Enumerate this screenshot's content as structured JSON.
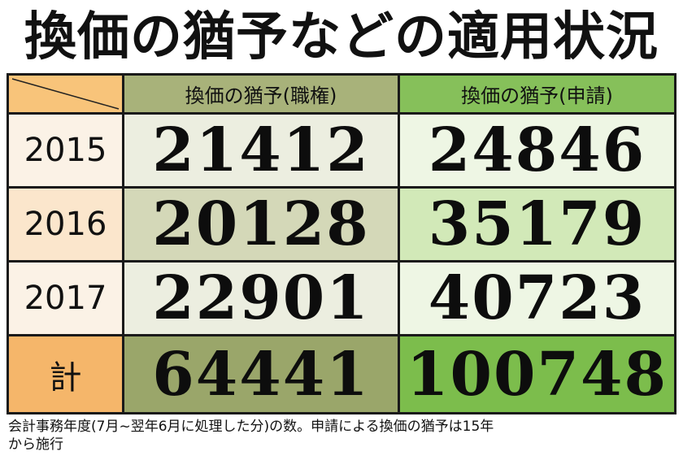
{
  "title": "換価の猶予などの適用状況",
  "table": {
    "columns": [
      "換価の猶予(職権)",
      "換価の猶予(申請)"
    ],
    "rows": [
      {
        "label": "2015",
        "values": [
          "21412",
          "24846"
        ]
      },
      {
        "label": "2016",
        "values": [
          "20128",
          "35179"
        ]
      },
      {
        "label": "2017",
        "values": [
          "22901",
          "40723"
        ]
      }
    ],
    "total": {
      "label": "計",
      "values": [
        "64441",
        "100748"
      ]
    }
  },
  "footnote": {
    "line1": "会計事務年度(7月~翌年6月に処理した分)の数。申請による換価の猶予は15年",
    "line2": "から施行"
  },
  "colors": {
    "corner": "#f8c47a",
    "year_light": "#fbe6cc",
    "year_white": "#fbf2e6",
    "total_label": "#f5b66a",
    "col1_header": "#a8b27a",
    "col1_light": "#eceee0",
    "col1_mid": "#d4d8b8",
    "col1_total": "#9aa66a",
    "col2_header": "#86c05a",
    "col2_light": "#eef6e4",
    "col2_mid": "#d2e9b8",
    "col2_total": "#7cbd4c"
  }
}
